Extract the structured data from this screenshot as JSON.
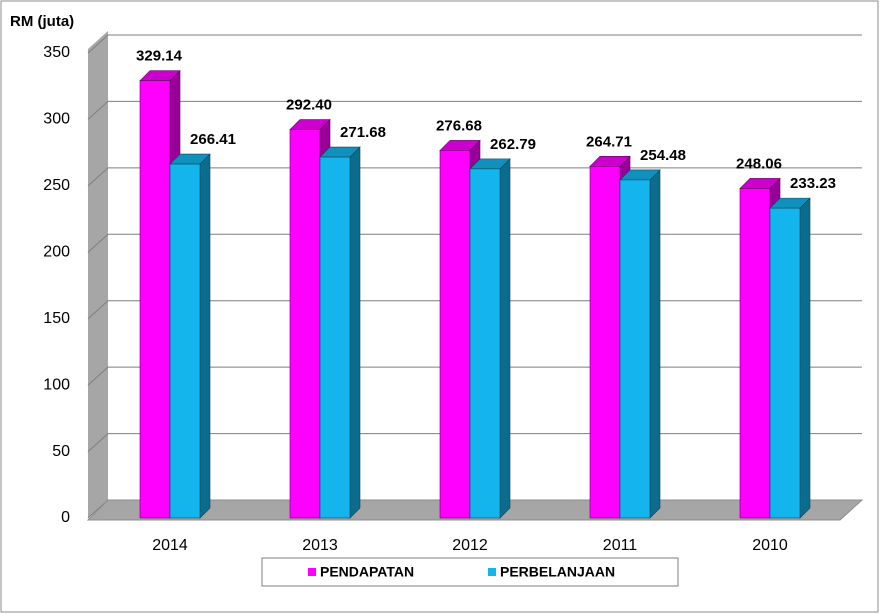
{
  "chart_data": {
    "type": "bar3d",
    "y_axis_label": "RM (juta)",
    "categories": [
      "2014",
      "2013",
      "2012",
      "2011",
      "2010"
    ],
    "series": [
      {
        "name": "PENDAPATAN",
        "color": "#ff00ff",
        "values": [
          329.14,
          292.4,
          276.68,
          264.71,
          248.06
        ],
        "value_labels": [
          "329.14",
          "292.40",
          "276.68",
          "264.71",
          "248.06"
        ]
      },
      {
        "name": "PERBELANJAAN",
        "color": "#14b4ec",
        "values": [
          266.41,
          271.68,
          262.79,
          254.48,
          233.23
        ],
        "value_labels": [
          "266.41",
          "271.68",
          "262.79",
          "254.48",
          "233.23"
        ]
      }
    ],
    "ylim": [
      0,
      350
    ],
    "yticks": [
      0,
      50,
      100,
      150,
      200,
      250,
      300,
      350
    ],
    "grid": true,
    "legend": "bottom"
  }
}
